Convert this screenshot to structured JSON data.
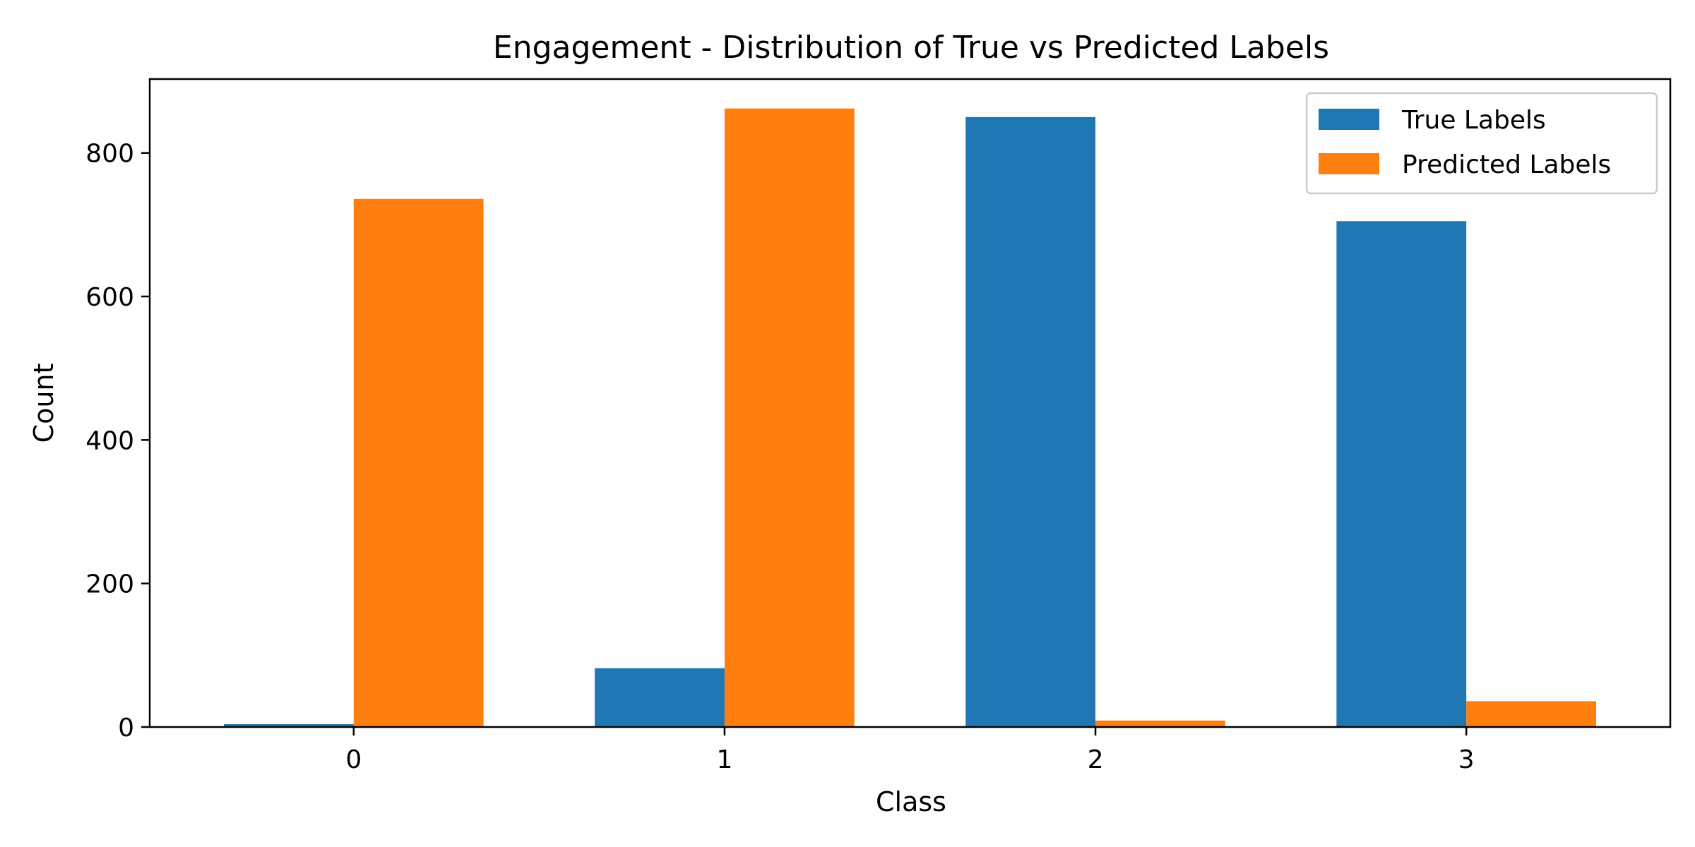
{
  "chart_data": {
    "type": "bar",
    "title": "Engagement - Distribution of True vs Predicted Labels",
    "xlabel": "Class",
    "ylabel": "Count",
    "categories": [
      "0",
      "1",
      "2",
      "3"
    ],
    "ylim": [
      0,
      903
    ],
    "yticks": [
      0,
      200,
      400,
      600,
      800
    ],
    "grid": false,
    "legend_position": "top-right",
    "series": [
      {
        "name": "True Labels",
        "color": "#1f77b4",
        "values": [
          4,
          82,
          850,
          705
        ]
      },
      {
        "name": "Predicted Labels",
        "color": "#ff7f0e",
        "values": [
          736,
          862,
          9,
          36
        ]
      }
    ]
  }
}
